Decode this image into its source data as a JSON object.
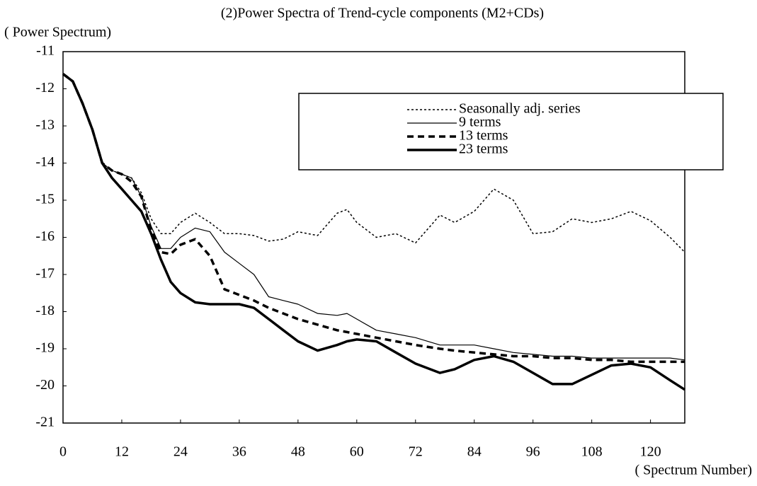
{
  "chart_data": {
    "type": "line",
    "title": "(2)Power Spectra of Trend-cycle components (M2+CDs)",
    "y_label": "( Power Spectrum)",
    "x_label": "( Spectrum Number)",
    "x": [
      0,
      2,
      4,
      6,
      8,
      10,
      12,
      14,
      16,
      18,
      20,
      22,
      24,
      27,
      30,
      33,
      36,
      39,
      42,
      45,
      48,
      52,
      56,
      58,
      60,
      64,
      68,
      72,
      77,
      80,
      84,
      88,
      92,
      96,
      100,
      104,
      108,
      112,
      116,
      120,
      124,
      127
    ],
    "xlim": [
      0,
      127
    ],
    "xticks": [
      0,
      12,
      24,
      36,
      48,
      60,
      72,
      84,
      96,
      108,
      120
    ],
    "ylim": [
      -21,
      -11
    ],
    "yticks": [
      -21,
      -20,
      -19,
      -18,
      -17,
      -16,
      -15,
      -14,
      -13,
      -12,
      -11
    ],
    "grid": false,
    "legend": "upper right",
    "series": [
      {
        "name": "Seasonally adj. series",
        "color": "#000000",
        "style": "dotted",
        "values": [
          -11.6,
          -11.8,
          -12.4,
          -13.1,
          -14.0,
          -14.2,
          -14.3,
          -14.4,
          -14.8,
          -15.5,
          -15.9,
          -15.9,
          -15.6,
          -15.35,
          -15.6,
          -15.9,
          -15.9,
          -15.95,
          -16.1,
          -16.05,
          -15.85,
          -15.95,
          -15.35,
          -15.25,
          -15.6,
          -16.0,
          -15.9,
          -16.15,
          -15.4,
          -15.6,
          -15.3,
          -14.7,
          -15.0,
          -15.9,
          -15.85,
          -15.5,
          -15.6,
          -15.5,
          -15.3,
          -15.55,
          -16.0,
          -16.4
        ]
      },
      {
        "name": "9 terms",
        "color": "#000000",
        "style": "thin",
        "values": [
          -11.6,
          -11.8,
          -12.4,
          -13.1,
          -14.0,
          -14.2,
          -14.3,
          -14.4,
          -14.9,
          -15.7,
          -16.3,
          -16.3,
          -16.0,
          -15.75,
          -15.85,
          -16.4,
          -16.7,
          -17.0,
          -17.6,
          -17.7,
          -17.8,
          -18.05,
          -18.1,
          -18.05,
          -18.2,
          -18.5,
          -18.6,
          -18.7,
          -18.9,
          -18.9,
          -18.9,
          -19.0,
          -19.1,
          -19.15,
          -19.2,
          -19.2,
          -19.25,
          -19.25,
          -19.25,
          -19.25,
          -19.25,
          -19.3
        ]
      },
      {
        "name": "13 terms",
        "color": "#000000",
        "style": "dashed",
        "values": [
          -11.6,
          -11.8,
          -12.4,
          -13.1,
          -14.0,
          -14.2,
          -14.3,
          -14.5,
          -14.9,
          -15.8,
          -16.4,
          -16.45,
          -16.2,
          -16.05,
          -16.5,
          -17.4,
          -17.55,
          -17.7,
          -17.9,
          -18.05,
          -18.2,
          -18.35,
          -18.5,
          -18.55,
          -18.6,
          -18.7,
          -18.8,
          -18.9,
          -19.0,
          -19.05,
          -19.1,
          -19.15,
          -19.2,
          -19.2,
          -19.25,
          -19.25,
          -19.3,
          -19.3,
          -19.35,
          -19.35,
          -19.35,
          -19.35
        ]
      },
      {
        "name": "23 terms",
        "color": "#000000",
        "style": "thick",
        "values": [
          -11.6,
          -11.8,
          -12.4,
          -13.1,
          -14.0,
          -14.4,
          -14.7,
          -15.0,
          -15.3,
          -15.9,
          -16.6,
          -17.2,
          -17.5,
          -17.75,
          -17.8,
          -17.8,
          -17.8,
          -17.9,
          -18.2,
          -18.5,
          -18.8,
          -19.05,
          -18.9,
          -18.8,
          -18.75,
          -18.8,
          -19.1,
          -19.4,
          -19.65,
          -19.55,
          -19.3,
          -19.2,
          -19.35,
          -19.65,
          -19.95,
          -19.95,
          -19.7,
          -19.45,
          -19.4,
          -19.5,
          -19.85,
          -20.1
        ]
      }
    ]
  }
}
